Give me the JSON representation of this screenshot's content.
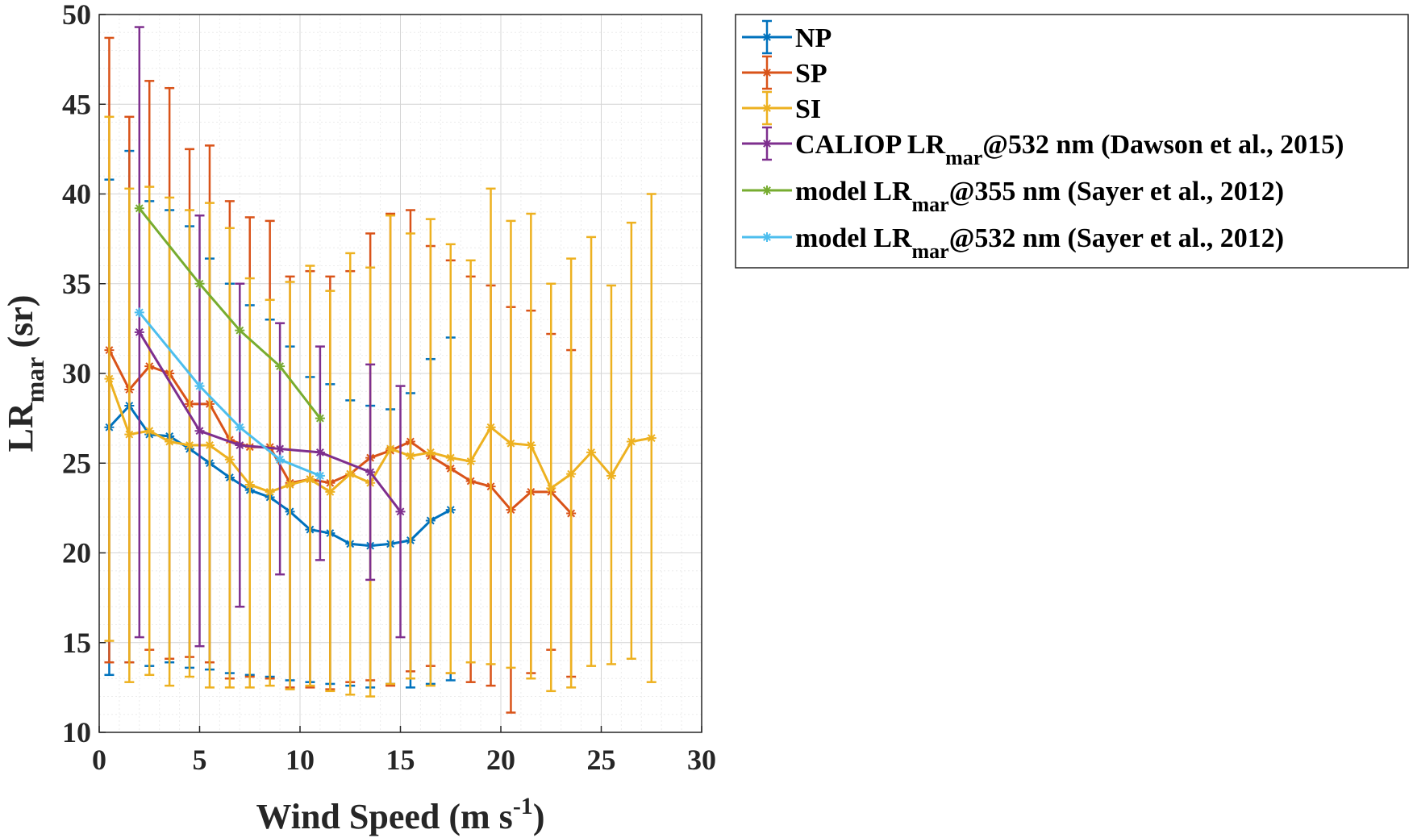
{
  "chart_data": {
    "type": "line",
    "xlabel_main": "Wind Speed (m s",
    "xlabel_sup": "-1",
    "xlabel_end": ")",
    "ylabel_main": "LR",
    "ylabel_sub": "mar",
    "ylabel_end": " (sr)",
    "xlim": [
      0,
      30
    ],
    "ylim": [
      10,
      50
    ],
    "xticks": [
      0,
      5,
      10,
      15,
      20,
      25,
      30
    ],
    "yticks": [
      10,
      15,
      20,
      25,
      30,
      35,
      40,
      45,
      50
    ],
    "grid": true,
    "minor_grid": true,
    "legend_position": "outside-top-right",
    "series": [
      {
        "name": "NP",
        "color": "#0072BD",
        "x": [
          0.5,
          1.5,
          2.5,
          3.5,
          4.5,
          5.5,
          6.5,
          7.5,
          8.5,
          9.5,
          10.5,
          11.5,
          12.5,
          13.5,
          14.5,
          15.5,
          16.5,
          17.5
        ],
        "y": [
          27.0,
          28.2,
          26.6,
          26.5,
          25.8,
          25.0,
          24.2,
          23.5,
          23.1,
          22.3,
          21.3,
          21.1,
          20.5,
          20.4,
          20.5,
          20.7,
          21.8,
          22.4
        ],
        "upper": [
          40.8,
          42.4,
          39.6,
          39.1,
          38.2,
          36.4,
          35.0,
          33.8,
          33.0,
          31.5,
          29.8,
          29.4,
          28.5,
          28.2,
          28.0,
          28.9,
          30.8,
          32.0
        ],
        "lower": [
          13.2,
          13.9,
          13.7,
          13.9,
          13.6,
          13.5,
          13.3,
          13.2,
          13.1,
          12.9,
          12.8,
          12.7,
          12.6,
          12.5,
          12.7,
          12.5,
          12.7,
          12.9
        ]
      },
      {
        "name": "SP",
        "color": "#D95319",
        "x": [
          0.5,
          1.5,
          2.5,
          3.5,
          4.5,
          5.5,
          6.5,
          7.5,
          8.5,
          9.5,
          10.5,
          11.5,
          12.5,
          13.5,
          14.5,
          15.5,
          16.5,
          17.5,
          18.5,
          19.5,
          20.5,
          21.5,
          22.5,
          23.5
        ],
        "y": [
          31.3,
          29.1,
          30.4,
          30.0,
          28.3,
          28.3,
          26.3,
          25.9,
          25.9,
          23.9,
          24.1,
          23.9,
          24.4,
          25.3,
          25.7,
          26.2,
          25.4,
          24.7,
          24.0,
          23.7,
          22.4,
          23.4,
          23.4,
          22.2
        ],
        "upper": [
          48.7,
          44.3,
          46.3,
          45.9,
          42.5,
          42.7,
          39.6,
          38.7,
          38.5,
          35.4,
          35.7,
          35.4,
          35.7,
          37.8,
          38.9,
          39.1,
          37.1,
          36.3,
          35.4,
          34.9,
          33.7,
          33.5,
          32.2,
          31.3
        ],
        "lower": [
          13.9,
          13.9,
          14.6,
          14.1,
          14.2,
          13.9,
          13.0,
          13.1,
          13.0,
          12.5,
          12.5,
          12.4,
          12.8,
          12.9,
          12.6,
          13.4,
          13.7,
          13.3,
          12.8,
          12.6,
          11.1,
          13.3,
          14.6,
          13.1
        ]
      },
      {
        "name": "SI",
        "color": "#EDB120",
        "x": [
          0.5,
          1.5,
          2.5,
          3.5,
          4.5,
          5.5,
          6.5,
          7.5,
          8.5,
          9.5,
          10.5,
          11.5,
          12.5,
          13.5,
          14.5,
          15.5,
          16.5,
          17.5,
          18.5,
          19.5,
          20.5,
          21.5,
          22.5,
          23.5,
          24.5,
          25.5,
          26.5,
          27.5
        ],
        "y": [
          29.7,
          26.6,
          26.8,
          26.2,
          26.0,
          26.0,
          25.2,
          23.8,
          23.4,
          23.8,
          24.1,
          23.4,
          24.4,
          23.9,
          25.8,
          25.4,
          25.6,
          25.3,
          25.1,
          27.0,
          26.1,
          26.0,
          23.6,
          24.4,
          25.6,
          24.3,
          26.2,
          26.4
        ],
        "upper": [
          44.3,
          40.3,
          40.4,
          39.8,
          39.1,
          39.5,
          38.1,
          35.3,
          34.1,
          35.1,
          36.0,
          34.6,
          36.7,
          35.9,
          38.8,
          37.8,
          38.6,
          37.2,
          36.3,
          40.3,
          38.5,
          38.9,
          35.0,
          36.4,
          37.6,
          34.9,
          38.4,
          40.0
        ],
        "lower": [
          15.1,
          12.8,
          13.2,
          12.6,
          13.1,
          12.5,
          12.5,
          12.5,
          12.6,
          12.4,
          12.6,
          12.3,
          12.1,
          12.0,
          12.7,
          13.0,
          12.6,
          13.3,
          13.9,
          13.8,
          13.6,
          13.0,
          12.3,
          12.5,
          13.7,
          13.8,
          14.1,
          12.8
        ]
      },
      {
        "name_main": "CALIOP LR",
        "name_sub": "mar",
        "name_end": "@532 nm (Dawson et al., 2015)",
        "color": "#7E2F8E",
        "x": [
          2,
          5,
          7,
          9,
          11,
          13.5,
          15
        ],
        "y": [
          32.3,
          26.8,
          26.0,
          25.8,
          25.6,
          24.5,
          22.3
        ],
        "upper": [
          49.3,
          38.8,
          35.0,
          32.8,
          31.5,
          30.5,
          29.3
        ],
        "lower": [
          15.3,
          14.8,
          17.0,
          18.8,
          19.6,
          18.5,
          15.3
        ]
      },
      {
        "name_main": "model LR",
        "name_sub": "mar",
        "name_end": "@355 nm (Sayer et al., 2012)",
        "color": "#77AC30",
        "x": [
          2,
          5,
          7,
          9,
          11
        ],
        "y": [
          39.2,
          35.0,
          32.4,
          30.4,
          27.5
        ]
      },
      {
        "name_main": "model LR",
        "name_sub": "mar",
        "name_end": "@532 nm (Sayer et al., 2012)",
        "color": "#4DBEEE",
        "x": [
          2,
          5,
          7,
          9,
          11
        ],
        "y": [
          33.4,
          29.3,
          27.0,
          25.2,
          24.3
        ]
      }
    ]
  }
}
